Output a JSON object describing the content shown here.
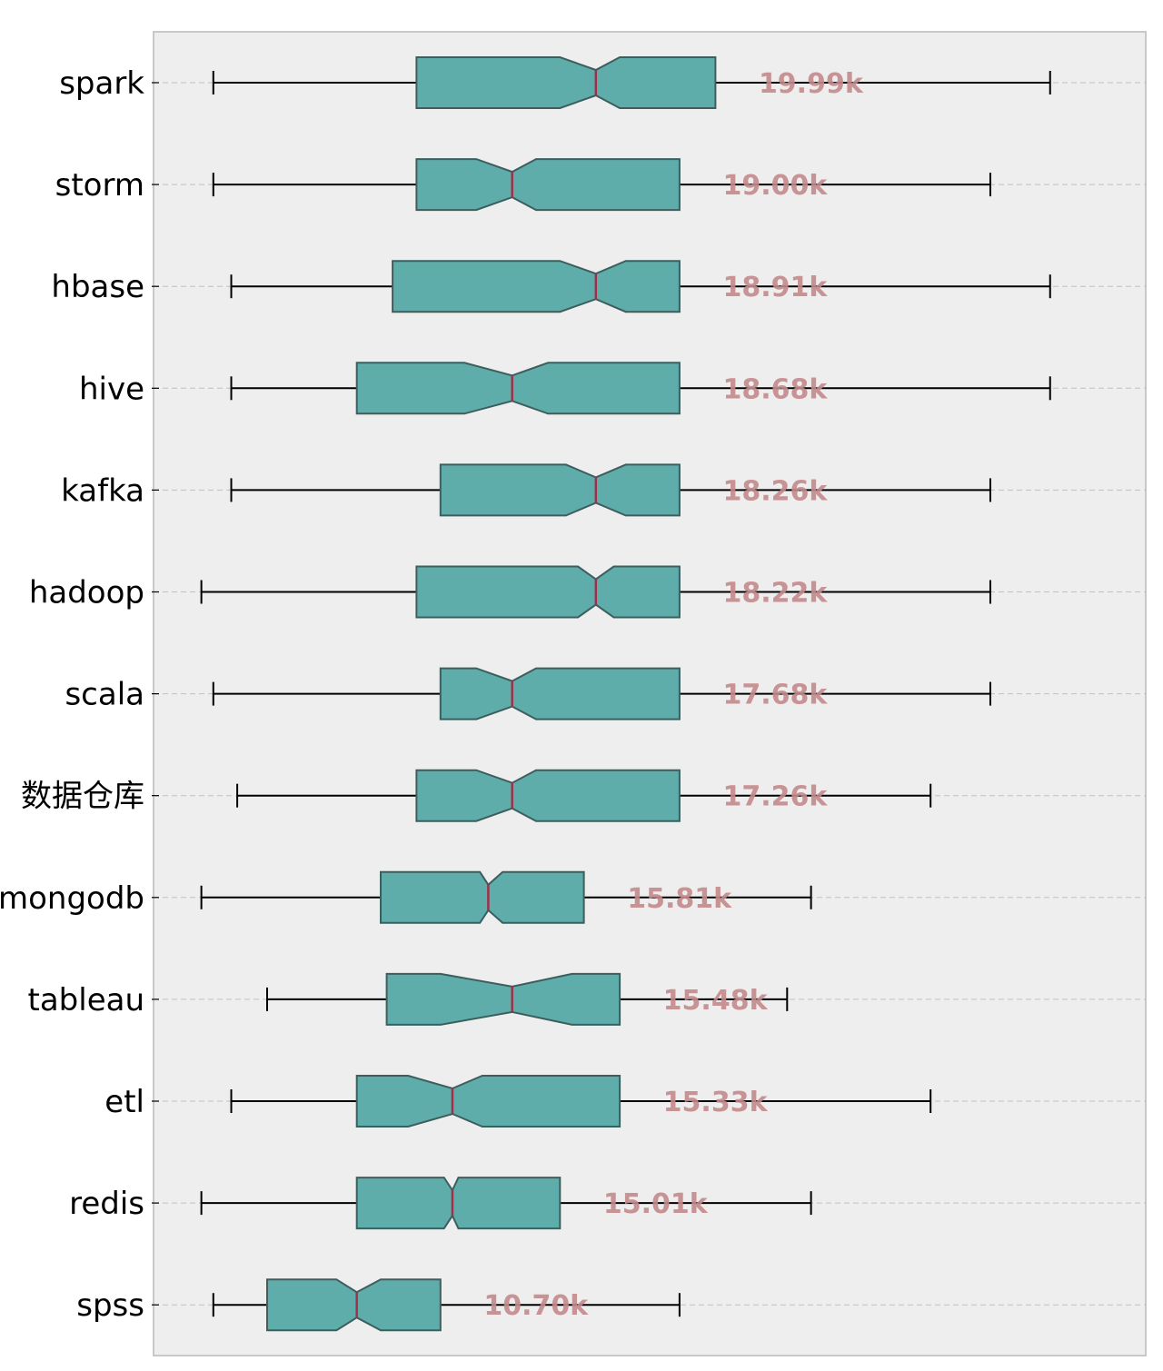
{
  "chart_data": {
    "type": "boxplot",
    "orientation": "horizontal",
    "notched": true,
    "title": "",
    "xlabel": "",
    "ylabel": "",
    "grid": "horizontal dashed",
    "colors": {
      "plot_background": "#eeeeee",
      "plot_border": "#c8c8c8",
      "box_fill": "#5fadab",
      "box_edge": "#3c5e5d",
      "median": "#a0304a",
      "whisker": "#000000",
      "value_label": "#c48a8c",
      "grid": "#c0c0c0"
    },
    "x_range": [
      -3,
      80
    ],
    "categories": [
      {
        "name": "spark",
        "label": "19.99k",
        "whisker_low": 2,
        "q1": 19,
        "median": 34,
        "q3": 44,
        "whisker_high": 72,
        "notch_low": 31,
        "notch_high": 36
      },
      {
        "name": "storm",
        "label": "19.00k",
        "whisker_low": 2,
        "q1": 19,
        "median": 27,
        "q3": 41,
        "whisker_high": 67,
        "notch_low": 24,
        "notch_high": 29
      },
      {
        "name": "hbase",
        "label": "18.91k",
        "whisker_low": 3.5,
        "q1": 17,
        "median": 34,
        "q3": 41,
        "whisker_high": 72,
        "notch_low": 31,
        "notch_high": 36.5
      },
      {
        "name": "hive",
        "label": "18.68k",
        "whisker_low": 3.5,
        "q1": 14,
        "median": 27,
        "q3": 41,
        "whisker_high": 72,
        "notch_low": 23,
        "notch_high": 30
      },
      {
        "name": "kafka",
        "label": "18.26k",
        "whisker_low": 3.5,
        "q1": 21,
        "median": 34,
        "q3": 41,
        "whisker_high": 67,
        "notch_low": 31.5,
        "notch_high": 36.5
      },
      {
        "name": "hadoop",
        "label": "18.22k",
        "whisker_low": 1,
        "q1": 19,
        "median": 34,
        "q3": 41,
        "whisker_high": 67,
        "notch_low": 32.5,
        "notch_high": 35.5
      },
      {
        "name": "scala",
        "label": "17.68k",
        "whisker_low": 2,
        "q1": 21,
        "median": 27,
        "q3": 41,
        "whisker_high": 67,
        "notch_low": 24,
        "notch_high": 29
      },
      {
        "name": "数据仓库",
        "label": "17.26k",
        "whisker_low": 4,
        "q1": 19,
        "median": 27,
        "q3": 41,
        "whisker_high": 62,
        "notch_low": 24,
        "notch_high": 29
      },
      {
        "name": "mongodb",
        "label": "15.81k",
        "whisker_low": 1,
        "q1": 16,
        "median": 25,
        "q3": 33,
        "whisker_high": 52,
        "notch_low": 24.3,
        "notch_high": 26.2
      },
      {
        "name": "tableau",
        "label": "15.48k",
        "whisker_low": 6.5,
        "q1": 16.5,
        "median": 27,
        "q3": 36,
        "whisker_high": 50,
        "notch_low": 21,
        "notch_high": 32
      },
      {
        "name": "etl",
        "label": "15.33k",
        "whisker_low": 3.5,
        "q1": 14,
        "median": 22,
        "q3": 36,
        "whisker_high": 62,
        "notch_low": 18.3,
        "notch_high": 24.5
      },
      {
        "name": "redis",
        "label": "15.01k",
        "whisker_low": 1,
        "q1": 14,
        "median": 22,
        "q3": 31,
        "whisker_high": 52,
        "notch_low": 21.3,
        "notch_high": 22.5
      },
      {
        "name": "spss",
        "label": "10.70k",
        "whisker_low": 2,
        "q1": 6.5,
        "median": 14,
        "q3": 21,
        "whisker_high": 41,
        "notch_low": 12.3,
        "notch_high": 16
      }
    ]
  }
}
